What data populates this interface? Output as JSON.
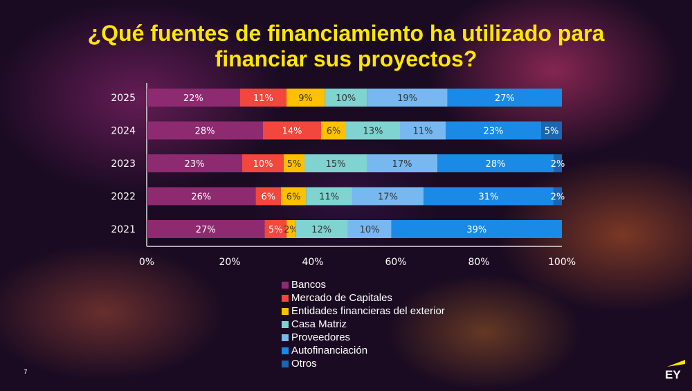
{
  "title_line1": "¿Qué fuentes de financiamiento ha utilizado para",
  "title_line2": "financiar sus proyectos?",
  "page_number": "7",
  "logo_text": "EY",
  "chart_data": {
    "type": "bar",
    "orientation": "horizontal",
    "stacked": "100%",
    "categories": [
      "2025",
      "2024",
      "2023",
      "2022",
      "2021"
    ],
    "series": [
      {
        "name": "Bancos",
        "color": "#8e2a70",
        "values": [
          22,
          28,
          23,
          26,
          27
        ]
      },
      {
        "name": "Mercado de Capitales",
        "color": "#f2473c",
        "values": [
          11,
          14,
          10,
          6,
          5
        ]
      },
      {
        "name": "Entidades financieras del exterior",
        "color": "#ffc000",
        "values": [
          9,
          6,
          5,
          6,
          2
        ]
      },
      {
        "name": "Casa Matriz",
        "color": "#7fd3d0",
        "values": [
          10,
          13,
          15,
          11,
          12
        ]
      },
      {
        "name": "Proveedores",
        "color": "#78b8f0",
        "values": [
          19,
          11,
          17,
          17,
          10
        ]
      },
      {
        "name": "Autofinanciación",
        "color": "#1a8ae6",
        "values": [
          27,
          23,
          28,
          31,
          39
        ]
      },
      {
        "name": "Otros",
        "color": "#1c65b0",
        "values": [
          null,
          5,
          2,
          2,
          null
        ]
      }
    ],
    "xticks": [
      "0%",
      "20%",
      "40%",
      "60%",
      "80%",
      "100%"
    ],
    "xlim": [
      0,
      100
    ],
    "legend_position": "bottom",
    "grid": false
  }
}
